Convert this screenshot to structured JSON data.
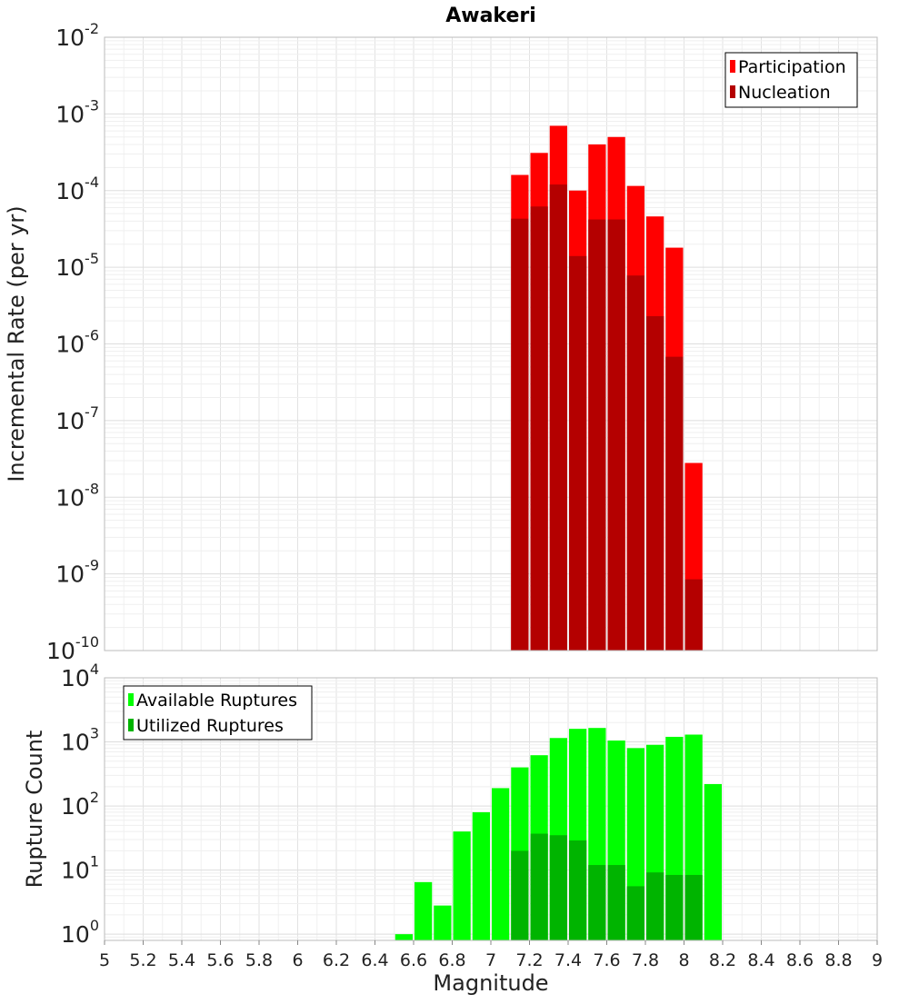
{
  "chart_data": [
    {
      "type": "bar",
      "title": "Awakeri",
      "xlabel": "",
      "ylabel": "Incremental Rate (per yr)",
      "yscale": "log",
      "ylim": [
        1e-10,
        0.01
      ],
      "xlim": [
        5,
        9
      ],
      "grid": true,
      "legend_position": "top-right",
      "bin_width": 0.1,
      "y_ticks": [
        {
          "base": "10",
          "exp": "-10",
          "value": 1e-10
        },
        {
          "base": "10",
          "exp": "-9",
          "value": 1e-09
        },
        {
          "base": "10",
          "exp": "-8",
          "value": 1e-08
        },
        {
          "base": "10",
          "exp": "-7",
          "value": 1e-07
        },
        {
          "base": "10",
          "exp": "-6",
          "value": 1e-06
        },
        {
          "base": "10",
          "exp": "-5",
          "value": 1e-05
        },
        {
          "base": "10",
          "exp": "-4",
          "value": 0.0001
        },
        {
          "base": "10",
          "exp": "-3",
          "value": 0.001
        },
        {
          "base": "10",
          "exp": "-2",
          "value": 0.01
        }
      ],
      "series": [
        {
          "name": "Participation",
          "color": "#ff0000",
          "x": [
            7.15,
            7.25,
            7.35,
            7.45,
            7.55,
            7.65,
            7.75,
            7.85,
            7.95,
            8.05
          ],
          "values": [
            0.00016,
            0.00031,
            0.0007,
            0.0001,
            0.0004,
            0.0005,
            0.000115,
            4.6e-05,
            1.8e-05,
            2.8e-08
          ]
        },
        {
          "name": "Nucleation",
          "color": "#b40000",
          "x": [
            7.15,
            7.25,
            7.35,
            7.45,
            7.55,
            7.65,
            7.75,
            7.85,
            7.95,
            8.05
          ],
          "values": [
            4.3e-05,
            6.2e-05,
            0.00012,
            1.4e-05,
            4.2e-05,
            4.2e-05,
            7.8e-06,
            2.3e-06,
            6.8e-07,
            8.5e-10
          ]
        }
      ]
    },
    {
      "type": "bar",
      "title": "",
      "xlabel": "Magnitude",
      "ylabel": "Rupture Count",
      "yscale": "log",
      "ylim": [
        0.8,
        10000
      ],
      "xlim": [
        5,
        9
      ],
      "grid": true,
      "legend_position": "top-left",
      "bin_width": 0.1,
      "x_ticks": [
        "5",
        "5.2",
        "5.4",
        "5.6",
        "5.8",
        "6",
        "6.2",
        "6.4",
        "6.6",
        "6.8",
        "7",
        "7.2",
        "7.4",
        "7.6",
        "7.8",
        "8",
        "8.2",
        "8.4",
        "8.6",
        "8.8",
        "9"
      ],
      "y_ticks": [
        {
          "base": "10",
          "exp": "0",
          "value": 1
        },
        {
          "base": "10",
          "exp": "1",
          "value": 10
        },
        {
          "base": "10",
          "exp": "2",
          "value": 100
        },
        {
          "base": "10",
          "exp": "3",
          "value": 1000
        },
        {
          "base": "10",
          "exp": "4",
          "value": 10000
        }
      ],
      "series": [
        {
          "name": "Available Ruptures",
          "color": "#00ff00",
          "x": [
            6.55,
            6.65,
            6.75,
            6.85,
            6.95,
            7.05,
            7.15,
            7.25,
            7.35,
            7.45,
            7.55,
            7.65,
            7.75,
            7.85,
            7.95,
            8.05,
            8.15
          ],
          "values": [
            1,
            6.5,
            2.8,
            40,
            80,
            190,
            400,
            620,
            1150,
            1600,
            1650,
            1050,
            800,
            900,
            1200,
            1300,
            220
          ]
        },
        {
          "name": "Utilized Ruptures",
          "color": "#00b400",
          "x": [
            7.15,
            7.25,
            7.35,
            7.45,
            7.55,
            7.65,
            7.75,
            7.85,
            7.95,
            8.05
          ],
          "values": [
            20,
            37,
            35,
            29,
            12,
            12,
            5.6,
            9.2,
            8.4,
            8.4
          ]
        }
      ]
    }
  ]
}
